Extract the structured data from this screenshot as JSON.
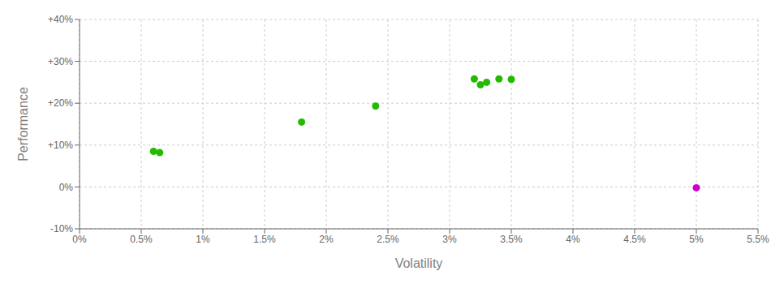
{
  "chart_data": {
    "type": "scatter",
    "xlabel": "Volatility",
    "ylabel": "Performance",
    "xlim": [
      0.0,
      0.055
    ],
    "ylim": [
      -0.1,
      0.4
    ],
    "xticks": [
      {
        "value": 0.0,
        "label": "0%"
      },
      {
        "value": 0.005,
        "label": "0.5%"
      },
      {
        "value": 0.01,
        "label": "1%"
      },
      {
        "value": 0.015,
        "label": "1.5%"
      },
      {
        "value": 0.02,
        "label": "2%"
      },
      {
        "value": 0.025,
        "label": "2.5%"
      },
      {
        "value": 0.03,
        "label": "3%"
      },
      {
        "value": 0.035,
        "label": "3.5%"
      },
      {
        "value": 0.04,
        "label": "4%"
      },
      {
        "value": 0.045,
        "label": "4.5%"
      },
      {
        "value": 0.05,
        "label": "5%"
      },
      {
        "value": 0.055,
        "label": "5.5%"
      }
    ],
    "yticks": [
      {
        "value": -0.1,
        "label": "-10%"
      },
      {
        "value": 0.0,
        "label": "0%"
      },
      {
        "value": 0.1,
        "label": "+10%"
      },
      {
        "value": 0.2,
        "label": "+20%"
      },
      {
        "value": 0.3,
        "label": "+30%"
      },
      {
        "value": 0.4,
        "label": "+40%"
      }
    ],
    "grid": true,
    "series": [
      {
        "color": "#22bb00",
        "points": [
          [
            0.006,
            0.085
          ],
          [
            0.0065,
            0.082
          ],
          [
            0.018,
            0.155
          ],
          [
            0.024,
            0.193
          ],
          [
            0.032,
            0.258
          ],
          [
            0.033,
            0.25
          ],
          [
            0.0325,
            0.244
          ],
          [
            0.034,
            0.258
          ],
          [
            0.035,
            0.257
          ]
        ]
      },
      {
        "color": "#cc00cc",
        "points": [
          [
            0.05,
            -0.002
          ]
        ]
      }
    ]
  }
}
